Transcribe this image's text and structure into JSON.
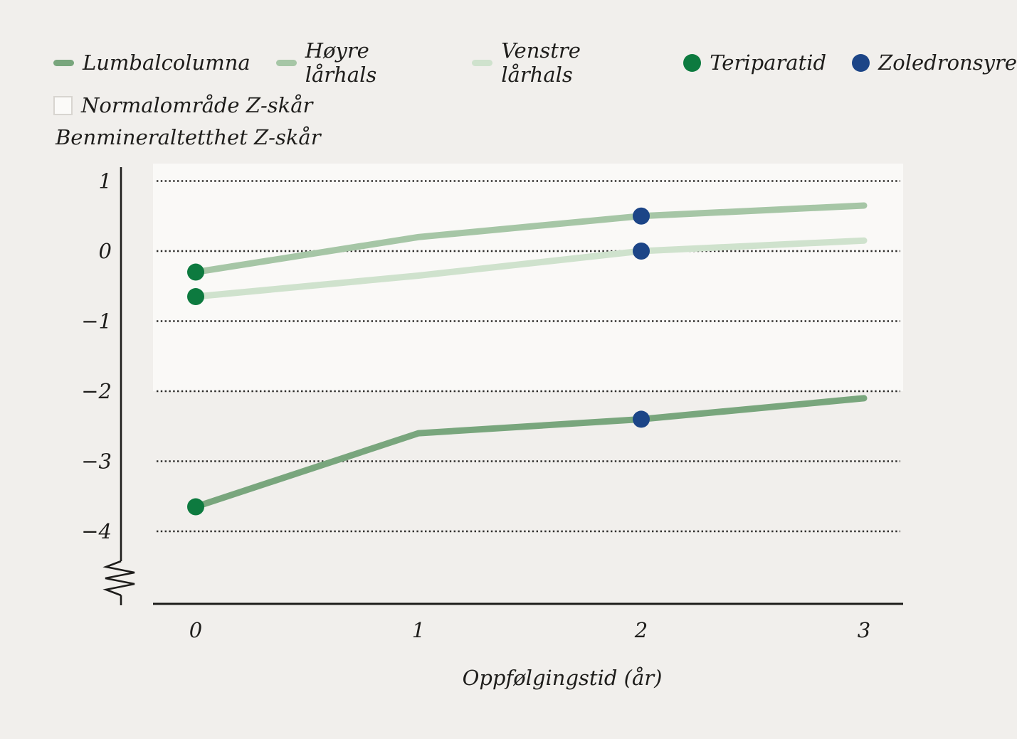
{
  "chart_data": {
    "type": "line",
    "xlabel": "Oppfølgingstid (år)",
    "ylabel": "Benmineraltetthet Z-skår",
    "x": [
      0,
      1,
      2,
      3
    ],
    "xticks": [
      "0",
      "1",
      "2",
      "3"
    ],
    "ytick_values": [
      1,
      0,
      -1,
      -2,
      -3,
      -4
    ],
    "yticks": [
      "1",
      "0",
      "−1",
      "−2",
      "−3",
      "−4"
    ],
    "ylim": [
      -4.6,
      1.25
    ],
    "axis_break": "y-axis broken below −4 before baseline",
    "grid": "horizontal dotted lines at each y tick",
    "series": [
      {
        "name": "Lumbalcolumna",
        "color": "#79a67d",
        "values": [
          -3.65,
          -2.6,
          -2.4,
          -2.1
        ]
      },
      {
        "name": "Høyre lårhals",
        "color": "#a6c6a6",
        "values": [
          -0.3,
          0.2,
          0.5,
          0.65
        ]
      },
      {
        "name": "Venstre lårhals",
        "color": "#cfe2cd",
        "values": [
          -0.65,
          -0.35,
          0.0,
          0.15
        ]
      }
    ],
    "markers": [
      {
        "name": "Teriparatid",
        "color": "#0d7a3f",
        "points": [
          [
            0,
            -3.65
          ],
          [
            0,
            -0.3
          ],
          [
            0,
            -0.65
          ]
        ]
      },
      {
        "name": "Zoledronsyre",
        "color": "#1c4587",
        "points": [
          [
            2,
            -2.4
          ],
          [
            2,
            0.5
          ],
          [
            2,
            0.0
          ]
        ]
      }
    ],
    "band": {
      "label": "Normalområde Z-skår",
      "from": -2,
      "to": "top of plot",
      "color": "#faf9f7"
    }
  },
  "legend": {
    "items": [
      {
        "label": "Lumbalcolumna",
        "type": "line",
        "color": "#79a67d"
      },
      {
        "label": "Høyre lårhals",
        "type": "line",
        "color": "#a6c6a6"
      },
      {
        "label": "Venstre lårhals",
        "type": "line",
        "color": "#cfe2cd"
      },
      {
        "label": "Teriparatid",
        "type": "dot",
        "color": "#0d7a3f"
      },
      {
        "label": "Zoledronsyre",
        "type": "dot",
        "color": "#1c4587"
      },
      {
        "label": "Normalområde Z-skår",
        "type": "band",
        "color": "#fbfaf8"
      }
    ]
  },
  "colors": {
    "background": "#f1efec",
    "band": "#faf9f7",
    "axis": "#1d1c1a",
    "gridline": "#2e2d2b",
    "text": "#1e1d1b"
  }
}
